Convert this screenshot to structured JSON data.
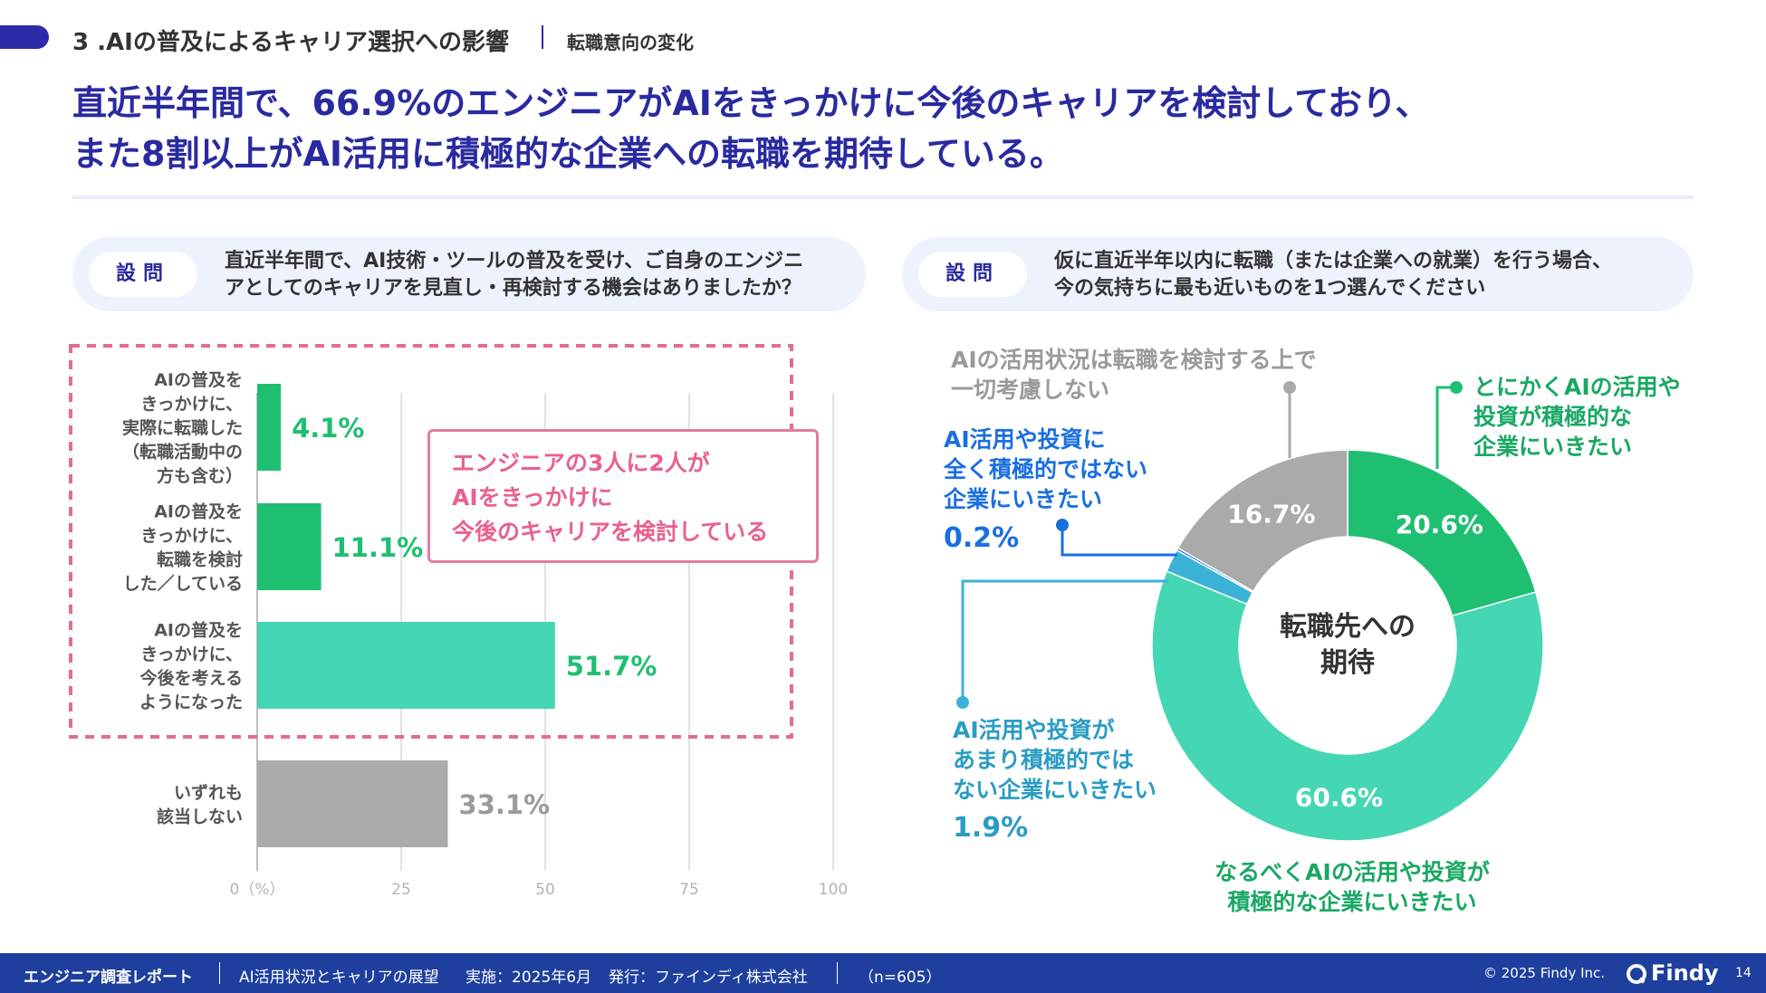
{
  "header": {
    "section_title": "3 .AIの普及によるキャリア選択への影響",
    "section_sub": "転職意向の変化"
  },
  "headline": {
    "line1": "直近半年間で、66.9%のエンジニアがAIをきっかけに今後のキャリアを検討しており、",
    "line2": "また8割以上がAI活用に積極的な企業への転職を期待している。"
  },
  "questions": {
    "label": "設問",
    "left": {
      "line1": "直近半年間で、AI技術・ツールの普及を受け、ご自身のエンジニ",
      "line2": "アとしてのキャリアを見直し・再検討する機会はありましたか？"
    },
    "right": {
      "line1": "仮に直近半年以内に転職（または企業への就業）を行う場合、",
      "line2": "今の気持ちに最も近いものを1つ選んでください"
    }
  },
  "callout": {
    "line1": "エンジニアの3人に2人が",
    "line2": "AIをきっかけに",
    "line3": "今後のキャリアを検討している"
  },
  "donut_center": {
    "line1": "転職先への",
    "line2": "期待"
  },
  "chart_data": [
    {
      "type": "bar",
      "orientation": "horizontal",
      "categories": [
        [
          "AIの普及を",
          "きっかけに、",
          "実際に転職した",
          "（転職活動中の",
          "方も含む）"
        ],
        [
          "AIの普及を",
          "きっかけに、",
          "転職を検討",
          "した／している"
        ],
        [
          "AIの普及を",
          "きっかけに、",
          "今後を考える",
          "ようになった"
        ],
        [
          "いずれも",
          "該当しない"
        ]
      ],
      "values": [
        4.1,
        11.1,
        51.7,
        33.1
      ],
      "value_labels": [
        "4.1%",
        "11.1%",
        "51.7%",
        "33.1%"
      ],
      "colors": [
        "#1fbf72",
        "#1fbf72",
        "#45d6b3",
        "#ababab"
      ],
      "label_colors": [
        "#1fbf72",
        "#1fbf72",
        "#1fbf72",
        "#9a9a9a"
      ],
      "xlim": [
        0,
        100
      ],
      "xticks": [
        "0（%）",
        "25",
        "50",
        "75",
        "100"
      ],
      "grid": true
    },
    {
      "type": "pie",
      "donut": true,
      "slices": [
        {
          "name": "とにかくAIの活用や投資が積極的な企業にいきたい",
          "label_lines": [
            "とにかくAIの活用や",
            "投資が積極的な",
            "企業にいきたい"
          ],
          "value": 20.6,
          "value_label": "20.6%",
          "color": "#1fbf72"
        },
        {
          "name": "なるべくAIの活用や投資が積極的な企業にいきたい",
          "label_lines": [
            "なるべくAIの活用や投資が",
            "積極的な企業にいきたい"
          ],
          "value": 60.6,
          "value_label": "60.6%",
          "color": "#45d6b3"
        },
        {
          "name": "AI活用や投資があまり積極的ではない企業にいきたい",
          "label_lines": [
            "AI活用や投資が",
            "あまり積極的では",
            "ない企業にいきたい"
          ],
          "value": 1.9,
          "value_label": "1.9%",
          "color": "#3cb3d6"
        },
        {
          "name": "AI活用や投資に全く積極的ではない企業にいきたい",
          "label_lines": [
            "AI活用や投資に",
            "全く積極的ではない",
            "企業にいきたい"
          ],
          "value": 0.2,
          "value_label": "0.2%",
          "color": "#1a6fe0"
        },
        {
          "name": "AIの活用状況は転職を検討する上で一切考慮しない",
          "label_lines": [
            "AIの活用状況は転職を検討する上で",
            "一切考慮しない"
          ],
          "value": 16.7,
          "value_label": "16.7%",
          "color": "#aaaaaa"
        }
      ]
    }
  ],
  "footer": {
    "report": "エンジニア調査レポート",
    "theme": "AI活用状況とキャリアの展望",
    "date": "実施：2025年6月",
    "publisher": "発行：ファインディ株式会社",
    "n": "（n=605）",
    "copyright": "© 2025 Findy Inc.",
    "logo": "Findy",
    "page": "14"
  }
}
